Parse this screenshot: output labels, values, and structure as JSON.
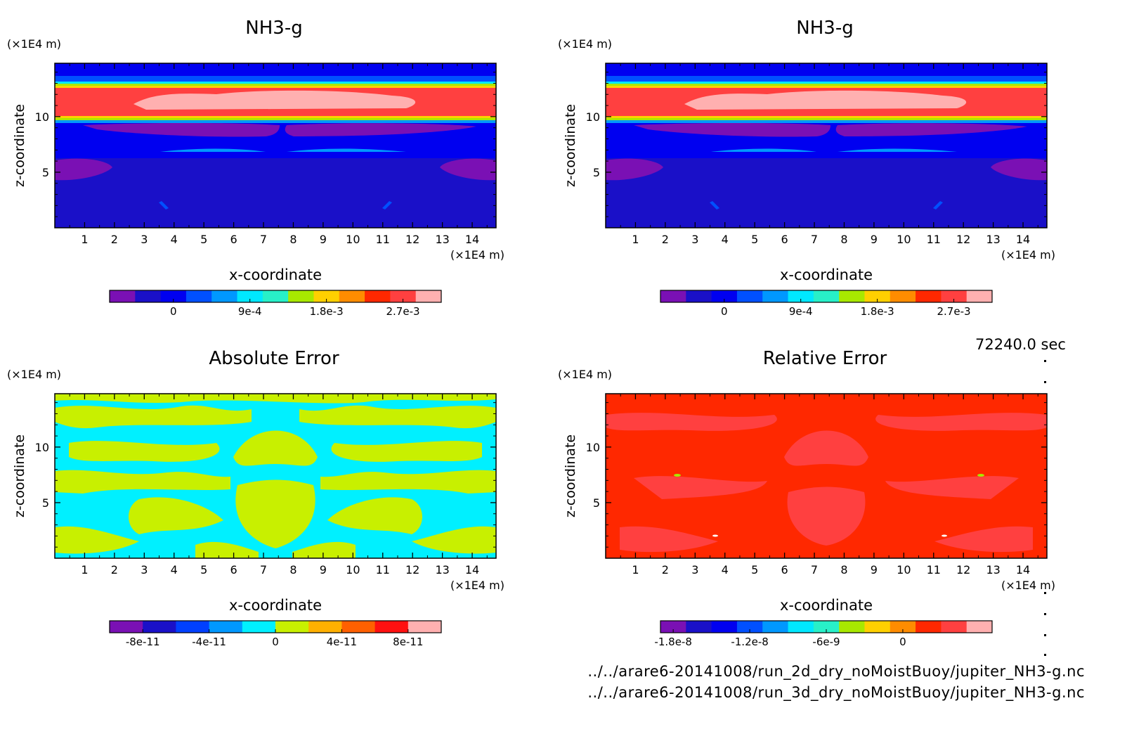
{
  "time_label": "72240.0 sec",
  "file_paths": [
    "../../arare6-20141008/run_2d_dry_noMoistBuoy/jupiter_NH3-g.nc",
    "../../arare6-20141008/run_3d_dry_noMoistBuoy/jupiter_NH3-g.nc"
  ],
  "chart_data": [
    {
      "type": "heatmap",
      "title": "NH3-g",
      "xlabel": "x-coordinate",
      "ylabel": "z-coordinate",
      "x_unit": "(×1E4 m)",
      "y_unit": "(×1E4 m)",
      "xlim": [
        0,
        14.8
      ],
      "ylim": [
        0,
        14.8
      ],
      "x_ticks": [
        1,
        2,
        3,
        4,
        5,
        6,
        7,
        8,
        9,
        10,
        11,
        12,
        13,
        14
      ],
      "y_ticks": [
        5,
        10
      ],
      "colorbar": {
        "colors": [
          "#7a10b4",
          "#1a10c8",
          "#0000f0",
          "#0050ff",
          "#0098ff",
          "#00e8ff",
          "#28f0c8",
          "#a8e800",
          "#ffd000",
          "#ff8c00",
          "#ff2800",
          "#ff4040",
          "#ffb0b0"
        ],
        "tick_labels": [
          "0",
          "9e-4",
          "1.8e-3",
          "2.7e-3"
        ],
        "tick_positions": [
          2.5,
          5.5,
          8.5,
          11.5
        ]
      },
      "description": "Layered NH3 field: high concentration band near z=10-13, low near surface"
    },
    {
      "type": "heatmap",
      "title": "NH3-g",
      "xlabel": "x-coordinate",
      "ylabel": "z-coordinate",
      "x_unit": "(×1E4 m)",
      "y_unit": "(×1E4 m)",
      "xlim": [
        0,
        14.8
      ],
      "ylim": [
        0,
        14.8
      ],
      "x_ticks": [
        1,
        2,
        3,
        4,
        5,
        6,
        7,
        8,
        9,
        10,
        11,
        12,
        13,
        14
      ],
      "y_ticks": [
        5,
        10
      ],
      "colorbar": {
        "colors": [
          "#7a10b4",
          "#1a10c8",
          "#0000f0",
          "#0050ff",
          "#0098ff",
          "#00e8ff",
          "#28f0c8",
          "#a8e800",
          "#ffd000",
          "#ff8c00",
          "#ff2800",
          "#ff4040",
          "#ffb0b0"
        ],
        "tick_labels": [
          "0",
          "9e-4",
          "1.8e-3",
          "2.7e-3"
        ],
        "tick_positions": [
          2.5,
          5.5,
          8.5,
          11.5
        ]
      }
    },
    {
      "type": "heatmap",
      "title": "Absolute Error",
      "xlabel": "x-coordinate",
      "ylabel": "z-coordinate",
      "x_unit": "(×1E4 m)",
      "y_unit": "(×1E4 m)",
      "xlim": [
        0,
        14.8
      ],
      "ylim": [
        0,
        14.8
      ],
      "x_ticks": [
        1,
        2,
        3,
        4,
        5,
        6,
        7,
        8,
        9,
        10,
        11,
        12,
        13,
        14
      ],
      "y_ticks": [
        5,
        10
      ],
      "colorbar": {
        "colors": [
          "#7a10b4",
          "#1a10c8",
          "#0040ff",
          "#0098ff",
          "#00f0ff",
          "#c8f000",
          "#ffb000",
          "#ff6000",
          "#ff1010",
          "#ffb0b0"
        ],
        "tick_labels": [
          "-8e-11",
          "-4e-11",
          "0",
          "4e-11",
          "8e-11"
        ],
        "tick_positions": [
          1,
          3,
          5,
          7,
          9
        ]
      }
    },
    {
      "type": "heatmap",
      "title": "Relative Error",
      "xlabel": "x-coordinate",
      "ylabel": "z-coordinate",
      "x_unit": "(×1E4 m)",
      "y_unit": "(×1E4 m)",
      "xlim": [
        0,
        14.8
      ],
      "ylim": [
        0,
        14.8
      ],
      "x_ticks": [
        1,
        2,
        3,
        4,
        5,
        6,
        7,
        8,
        9,
        10,
        11,
        12,
        13,
        14
      ],
      "y_ticks": [
        5,
        10
      ],
      "colorbar": {
        "colors": [
          "#7a10b4",
          "#1a10c8",
          "#0000f0",
          "#0050ff",
          "#0098ff",
          "#00e8ff",
          "#28f0c8",
          "#a8e800",
          "#ffd000",
          "#ff8c00",
          "#ff2800",
          "#ff4040",
          "#ffb0b0"
        ],
        "tick_labels": [
          "-1.8e-8",
          "-1.2e-8",
          "-6e-9",
          "0"
        ],
        "tick_positions": [
          0.5,
          3.5,
          6.5,
          9.5
        ]
      }
    }
  ]
}
